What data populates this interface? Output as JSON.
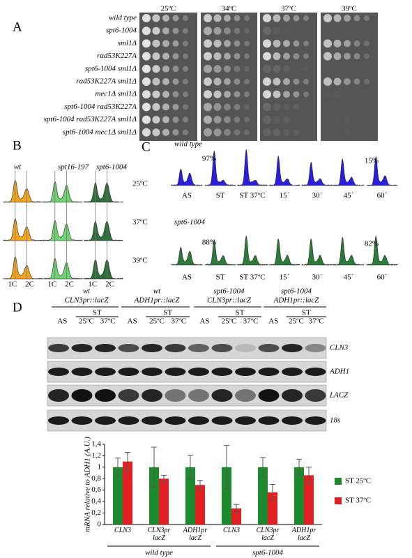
{
  "panel_a": {
    "label": "A",
    "temperatures": [
      "25ºC",
      "34ºC",
      "37ºC",
      "39ºC"
    ],
    "strains": [
      "wild type",
      "spt6-1004",
      "sml1Δ",
      "rad53K227A",
      "spt6-1004 sml1Δ",
      "rad53K227A sml1Δ",
      "mec1Δ sml1Δ",
      "spt6-1004 rad53K227A",
      "spt6-1004 rad53K227A sml1Δ",
      "spt6-1004 mec1Δ sml1Δ"
    ]
  },
  "panel_b": {
    "label": "B",
    "strains": [
      "wt",
      "spt16-197",
      "spt6-1004"
    ],
    "temperatures": [
      "25ºC",
      "37ºC",
      "39ºC"
    ],
    "axis_labels": [
      "1C",
      "2C"
    ]
  },
  "panel_c": {
    "label": "C",
    "rows": [
      {
        "name": "wild type",
        "first_percent": "97%",
        "last_percent": "15%"
      },
      {
        "name": "spt6-1004",
        "first_percent": "88%",
        "last_percent": "82%"
      }
    ],
    "timepoints": [
      "AS",
      "ST",
      "ST 37ºC",
      "15´",
      "30´",
      "45´",
      "60´"
    ]
  },
  "panel_d": {
    "label": "D",
    "groups": [
      [
        "wt",
        "CLN3pr::lacZ"
      ],
      [
        "wt",
        "ADH1pr::lacZ"
      ],
      [
        "spt6-1004",
        "CLN3pr::lacZ"
      ],
      [
        "spt6-1004",
        "ADH1pr::lacZ"
      ]
    ],
    "lanes": {
      "as": "AS",
      "st": "ST",
      "temps": [
        "25ºC",
        "37ºC"
      ]
    },
    "genes": [
      "CLN3",
      "ADH1",
      "LACZ",
      "18s"
    ]
  },
  "chart_data": {
    "type": "bar",
    "ylabel": "mRNA relative to ADH1 (A.U.)",
    "categories": [
      "CLN3",
      "CLN3pr lacZ",
      "ADH1pr lacZ",
      "CLN3",
      "CLN3pr lacZ",
      "ADH1pr lacZ"
    ],
    "groups": [
      "wild type",
      "spt6-1004"
    ],
    "series": [
      {
        "name": "ST 25ºC",
        "color": "#1e8a2e",
        "values": [
          1.0,
          1.0,
          1.0,
          1.0,
          1.0,
          1.0
        ],
        "errors": [
          0.16,
          0.35,
          0.21,
          0.38,
          0.17,
          0.14
        ]
      },
      {
        "name": "ST 37ºC",
        "color": "#e02020",
        "values": [
          1.1,
          0.8,
          0.69,
          0.28,
          0.56,
          0.86
        ],
        "errors": [
          0.16,
          0.06,
          0.08,
          0.07,
          0.14,
          0.14
        ]
      }
    ],
    "ylim": [
      0,
      1.4
    ],
    "yticks": [
      0,
      {
        "value": 0.2,
        "label": "0,2"
      },
      {
        "value": 0.4,
        "label": "0,4"
      },
      {
        "value": 0.6,
        "label": "0,6"
      },
      {
        "value": 0.8,
        "label": "0,8"
      },
      1,
      {
        "value": 1.2,
        "label": "1,2"
      },
      {
        "value": 1.4,
        "label": "1,4"
      }
    ]
  }
}
